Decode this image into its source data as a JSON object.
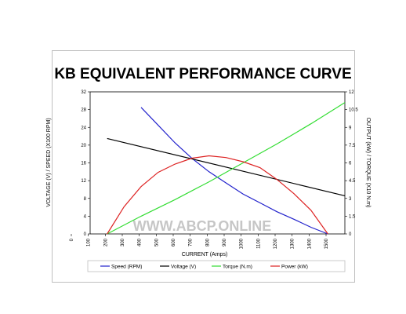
{
  "chart_data": {
    "type": "line",
    "title": "KB EQUIVALENT PERFORMANCE CURVE",
    "xlabel": "CURRENT (Amps)",
    "ylabel_left": "VOLTAGE (V) / SPEED (X100 RPM)",
    "ylabel_right": "OUTPUT (kW) / TORQUE (X10 N.m)",
    "xlim": [
      0,
      1500
    ],
    "ylim_left": [
      0,
      32
    ],
    "ylim_right": [
      0,
      12
    ],
    "x_ticks": [
      0,
      100,
      200,
      300,
      400,
      500,
      600,
      700,
      800,
      900,
      1000,
      1100,
      1200,
      1300,
      1400,
      1500
    ],
    "y_ticks_left": [
      0,
      4,
      8,
      12,
      16,
      20,
      24,
      28,
      32
    ],
    "y_ticks_right": [
      0,
      1.5,
      3,
      4.5,
      6,
      7.5,
      9,
      10.5,
      12
    ],
    "grid": false,
    "legend_position": "bottom",
    "watermark": "WWW.ABCP.ONLINE",
    "series": [
      {
        "name": "Speed (RPM)",
        "color": "#2222cc",
        "axis": "left",
        "x": [
          300,
          400,
          500,
          600,
          700,
          800,
          900,
          1000,
          1100,
          1200,
          1300,
          1400
        ],
        "y": [
          28.5,
          24.5,
          20.5,
          17,
          14,
          11.5,
          9,
          7,
          5,
          3.3,
          1.5,
          0
        ]
      },
      {
        "name": "Voltage (V)",
        "color": "#000000",
        "axis": "left",
        "x": [
          100,
          1500
        ],
        "y": [
          21.5,
          8.6
        ]
      },
      {
        "name": "Torque (N.m)",
        "color": "#33dd33",
        "axis": "right",
        "x": [
          100,
          300,
          500,
          700,
          900,
          1100,
          1300,
          1500
        ],
        "y": [
          0,
          1.5,
          2.9,
          4.4,
          6.0,
          7.6,
          9.3,
          11.1
        ]
      },
      {
        "name": "Power (kW)",
        "color": "#dd2222",
        "axis": "right",
        "x": [
          100,
          200,
          300,
          400,
          500,
          600,
          700,
          800,
          900,
          1000,
          1100,
          1200,
          1300,
          1400
        ],
        "y": [
          0,
          2.3,
          4.0,
          5.2,
          5.9,
          6.4,
          6.6,
          6.45,
          6.1,
          5.6,
          4.6,
          3.4,
          2.0,
          0
        ]
      }
    ]
  }
}
